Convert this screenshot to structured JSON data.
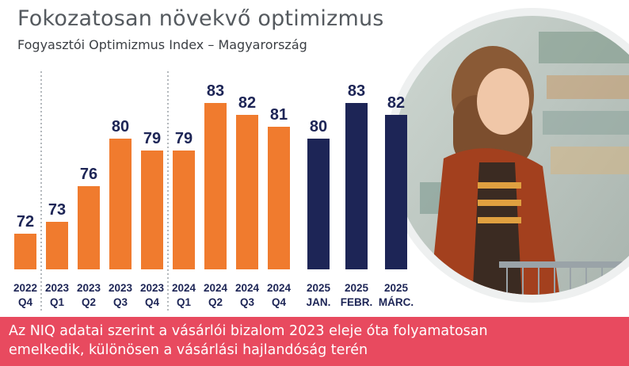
{
  "title": "Fokozatosan növekvő optimizmus",
  "subtitle": "Fogyasztói Optimizmus Index – Magyarország",
  "banner": {
    "line1": "Az NIQ adatai szerint a vásárlói bizalom 2023 eleje óta folyamatosan",
    "line2": "emelkedik, különösen a vásárlási hajlandóság terén"
  },
  "colors": {
    "orange": "#f07b2e",
    "navy": "#1d2556",
    "banner": "#e84a5f",
    "text": "#1d2556"
  },
  "chart_data": {
    "type": "bar",
    "title": "Fokozatosan növekvő optimizmus",
    "subtitle": "Fogyasztói Optimizmus Index – Magyarország",
    "categories": [
      [
        "2022",
        "Q4"
      ],
      [
        "2023",
        "Q1"
      ],
      [
        "2023",
        "Q2"
      ],
      [
        "2023",
        "Q3"
      ],
      [
        "2023",
        "Q4"
      ],
      [
        "2024",
        "Q1"
      ],
      [
        "2024",
        "Q2"
      ],
      [
        "2024",
        "Q3"
      ],
      [
        "2024",
        "Q4"
      ],
      [
        "2025",
        "JAN."
      ],
      [
        "2025",
        "FEBR."
      ],
      [
        "2025",
        "MÁRC."
      ]
    ],
    "values": [
      72,
      73,
      76,
      80,
      79,
      79,
      83,
      82,
      81,
      80,
      83,
      82
    ],
    "bar_colors": [
      "orange",
      "orange",
      "orange",
      "orange",
      "orange",
      "orange",
      "orange",
      "orange",
      "orange",
      "navy",
      "navy",
      "navy"
    ],
    "value_labels": [
      "72",
      "73",
      "76",
      "80",
      "79",
      "79",
      "83",
      "82",
      "81",
      "80",
      "83",
      "82"
    ],
    "ylim": [
      69,
      84
    ],
    "separators_after": [
      0,
      4
    ],
    "grid": false,
    "legend": "none",
    "xlabel": "",
    "ylabel": ""
  }
}
